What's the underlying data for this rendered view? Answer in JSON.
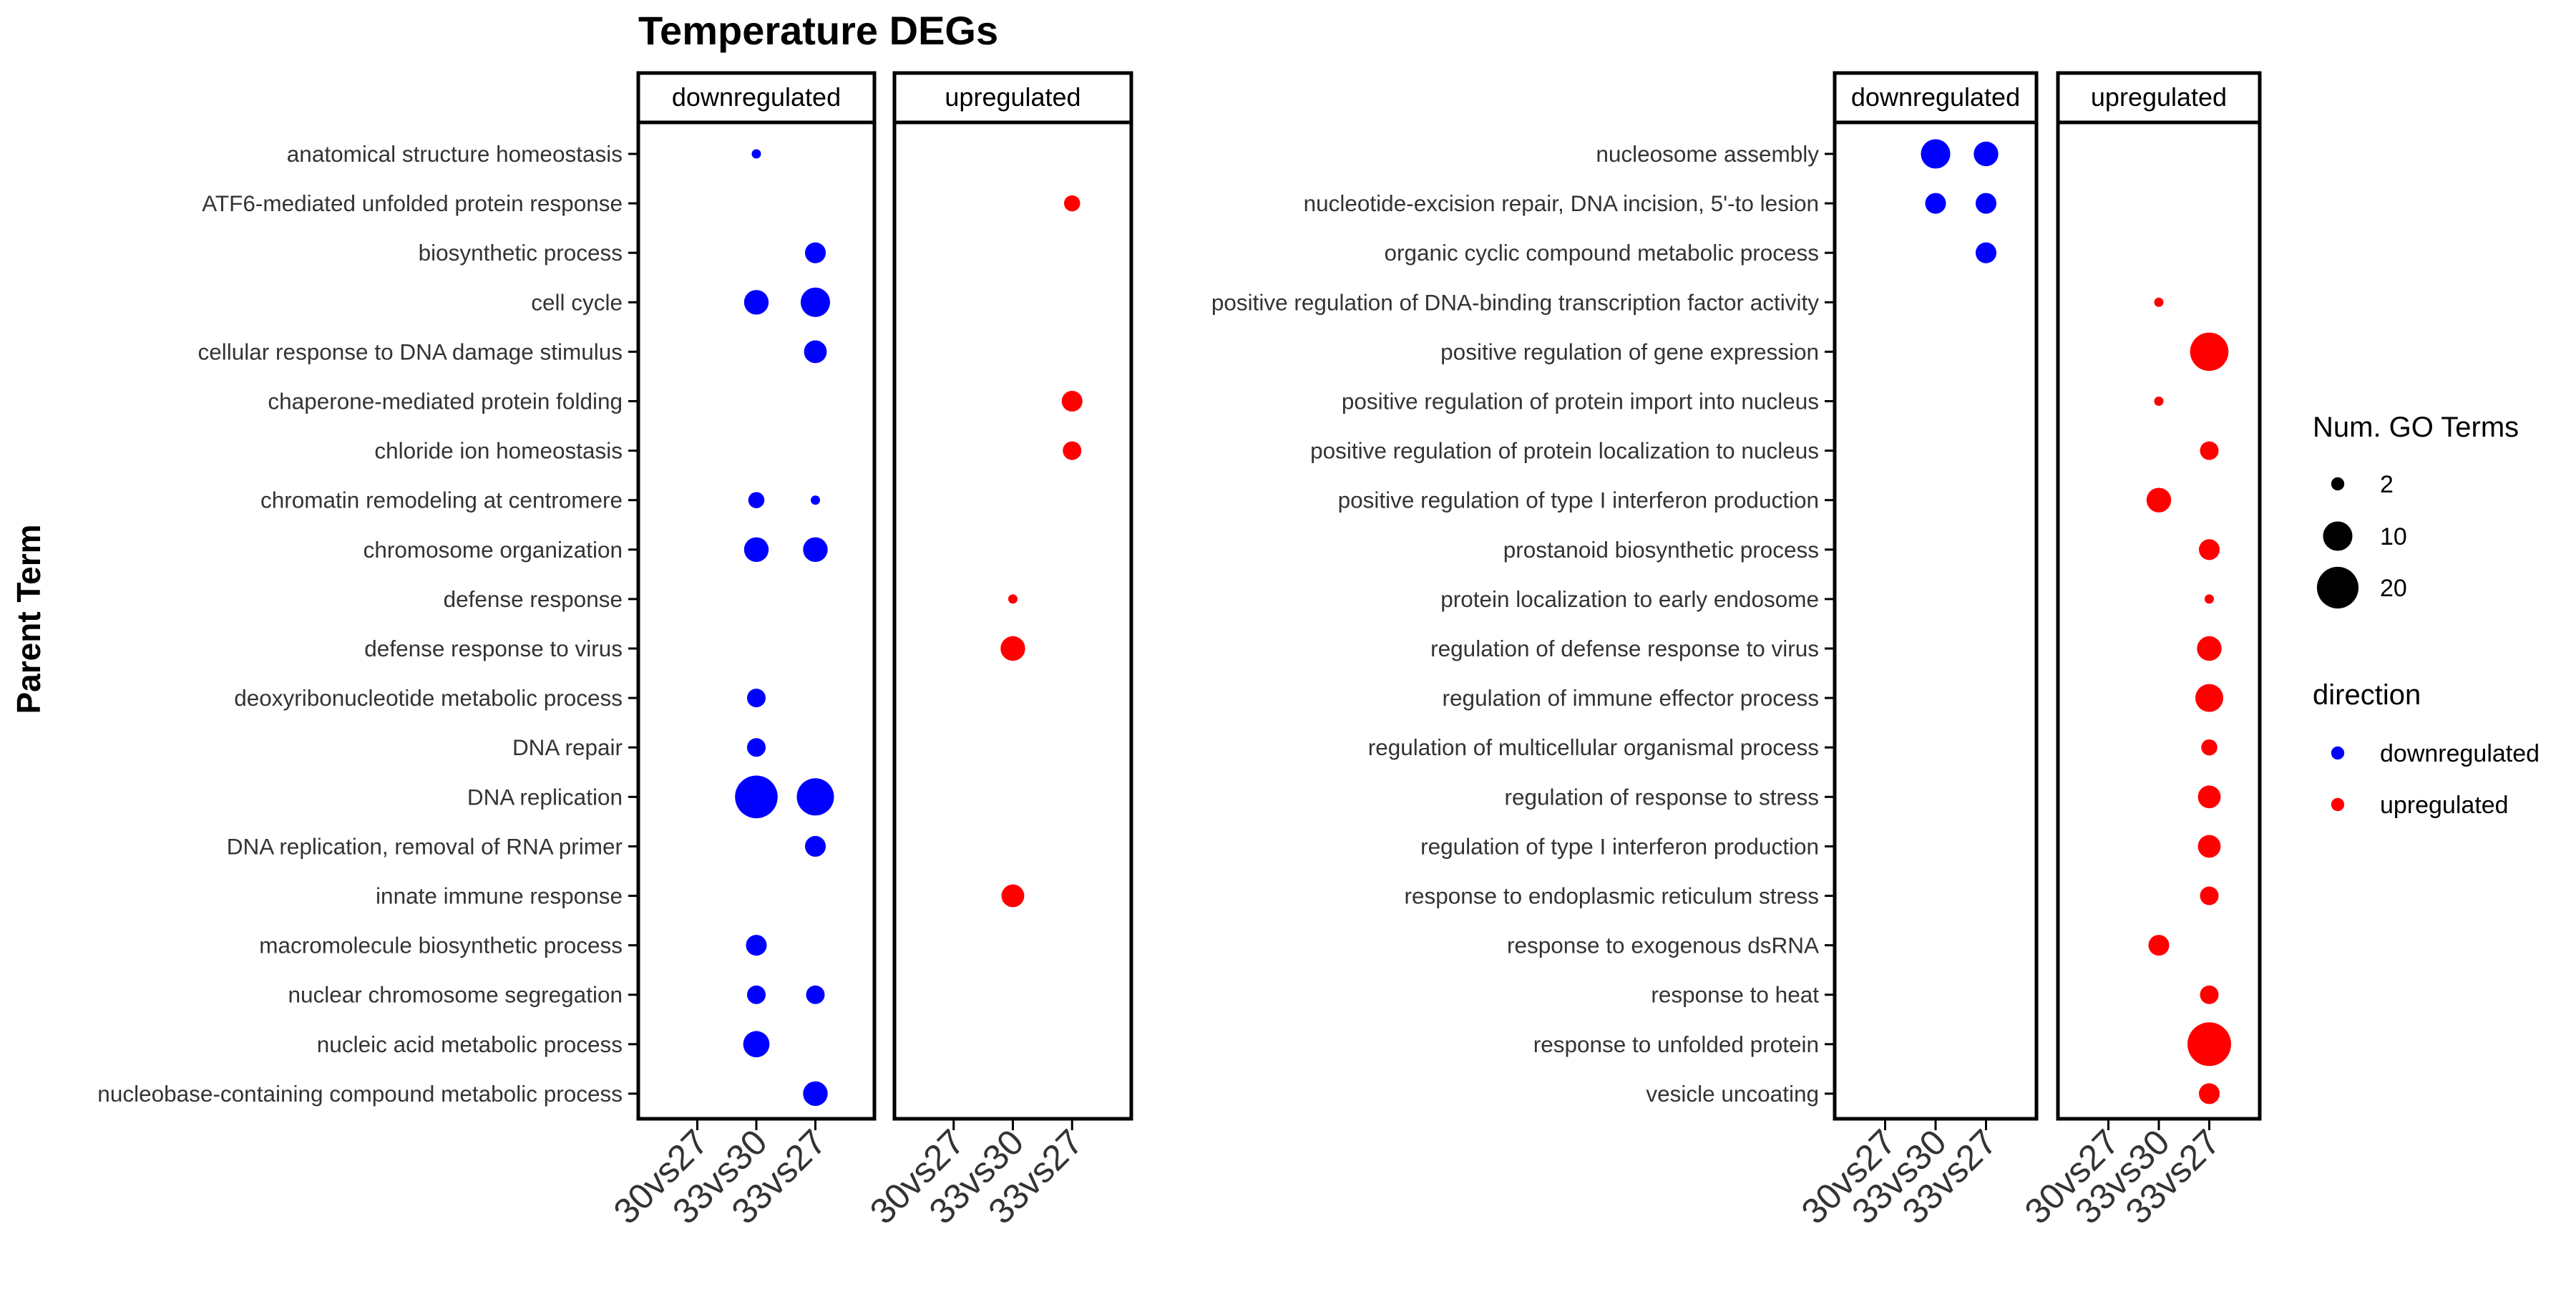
{
  "title": "Temperature DEGs",
  "colors": {
    "downregulated": "#0000ff",
    "upregulated": "#ff0000"
  },
  "chart_data": {
    "type": "scatter",
    "title": "Temperature DEGs",
    "ylabel": "Parent Term",
    "xlabel": "",
    "grid": false,
    "legend_position": "right",
    "size_legend": {
      "title": "Num. GO Terms",
      "values": [
        2,
        10,
        20
      ]
    },
    "color_legend": {
      "title": "direction",
      "entries": [
        "downregulated",
        "upregulated"
      ]
    },
    "panels": [
      {
        "name": "downregulated",
        "side": "left"
      },
      {
        "name": "upregulated",
        "side": "left"
      },
      {
        "name": "downregulated",
        "side": "right"
      },
      {
        "name": "upregulated",
        "side": "right"
      }
    ],
    "x_categories": [
      "30vs27",
      "33vs30",
      "33vs27"
    ],
    "left_terms": [
      "anatomical structure homeostasis",
      "ATF6-mediated unfolded protein response",
      "biosynthetic process",
      "cell cycle",
      "cellular response to DNA damage stimulus",
      "chaperone-mediated protein folding",
      "chloride ion homeostasis",
      "chromatin remodeling at centromere",
      "chromosome organization",
      "defense response",
      "defense response to virus",
      "deoxyribonucleotide metabolic process",
      "DNA repair",
      "DNA replication",
      "DNA replication, removal of RNA primer",
      "innate immune response",
      "macromolecule biosynthetic process",
      "nuclear chromosome segregation",
      "nucleic acid metabolic process",
      "nucleobase-containing compound metabolic process"
    ],
    "right_terms": [
      "nucleosome assembly",
      "nucleotide-excision repair, DNA incision, 5'-to lesion",
      "organic cyclic compound metabolic process",
      "positive regulation of DNA-binding transcription factor activity",
      "positive regulation of gene expression",
      "positive regulation of protein import into nucleus",
      "positive regulation of protein localization to nucleus",
      "positive regulation of type I interferon production",
      "prostanoid biosynthetic process",
      "protein localization to early endosome",
      "regulation of defense response to virus",
      "regulation of immune effector process",
      "regulation of multicellular organismal process",
      "regulation of response to stress",
      "regulation of type I interferon production",
      "response to endoplasmic reticulum stress",
      "response to exogenous dsRNA",
      "response to heat",
      "response to unfolded protein",
      "vesicle uncoating"
    ],
    "points": [
      {
        "side": "left",
        "panel": "downregulated",
        "term": "anatomical structure homeostasis",
        "x": "33vs30",
        "n": 1
      },
      {
        "side": "left",
        "panel": "upregulated",
        "term": "ATF6-mediated unfolded protein response",
        "x": "33vs27",
        "n": 3
      },
      {
        "side": "left",
        "panel": "downregulated",
        "term": "biosynthetic process",
        "x": "33vs27",
        "n": 5
      },
      {
        "side": "left",
        "panel": "downregulated",
        "term": "cell cycle",
        "x": "33vs30",
        "n": 7
      },
      {
        "side": "left",
        "panel": "downregulated",
        "term": "cell cycle",
        "x": "33vs27",
        "n": 10
      },
      {
        "side": "left",
        "panel": "downregulated",
        "term": "cellular response to DNA damage stimulus",
        "x": "33vs27",
        "n": 6
      },
      {
        "side": "left",
        "panel": "upregulated",
        "term": "chaperone-mediated protein folding",
        "x": "33vs27",
        "n": 5
      },
      {
        "side": "left",
        "panel": "upregulated",
        "term": "chloride ion homeostasis",
        "x": "33vs27",
        "n": 4
      },
      {
        "side": "left",
        "panel": "downregulated",
        "term": "chromatin remodeling at centromere",
        "x": "33vs30",
        "n": 3
      },
      {
        "side": "left",
        "panel": "downregulated",
        "term": "chromatin remodeling at centromere",
        "x": "33vs27",
        "n": 1
      },
      {
        "side": "left",
        "panel": "downregulated",
        "term": "chromosome organization",
        "x": "33vs30",
        "n": 7
      },
      {
        "side": "left",
        "panel": "downregulated",
        "term": "chromosome organization",
        "x": "33vs27",
        "n": 7
      },
      {
        "side": "left",
        "panel": "upregulated",
        "term": "defense response",
        "x": "33vs30",
        "n": 1
      },
      {
        "side": "left",
        "panel": "upregulated",
        "term": "defense response to virus",
        "x": "33vs30",
        "n": 7
      },
      {
        "side": "left",
        "panel": "downregulated",
        "term": "deoxyribonucleotide metabolic process",
        "x": "33vs30",
        "n": 4
      },
      {
        "side": "left",
        "panel": "downregulated",
        "term": "DNA repair",
        "x": "33vs30",
        "n": 4
      },
      {
        "side": "left",
        "panel": "downregulated",
        "term": "DNA replication",
        "x": "33vs30",
        "n": 21
      },
      {
        "side": "left",
        "panel": "downregulated",
        "term": "DNA replication",
        "x": "33vs27",
        "n": 16
      },
      {
        "side": "left",
        "panel": "downregulated",
        "term": "DNA replication, removal of RNA primer",
        "x": "33vs27",
        "n": 5
      },
      {
        "side": "left",
        "panel": "upregulated",
        "term": "innate immune response",
        "x": "33vs30",
        "n": 6
      },
      {
        "side": "left",
        "panel": "downregulated",
        "term": "macromolecule biosynthetic process",
        "x": "33vs30",
        "n": 5
      },
      {
        "side": "left",
        "panel": "downregulated",
        "term": "nuclear chromosome segregation",
        "x": "33vs30",
        "n": 4
      },
      {
        "side": "left",
        "panel": "downregulated",
        "term": "nuclear chromosome segregation",
        "x": "33vs27",
        "n": 4
      },
      {
        "side": "left",
        "panel": "downregulated",
        "term": "nucleic acid metabolic process",
        "x": "33vs30",
        "n": 8
      },
      {
        "side": "left",
        "panel": "downregulated",
        "term": "nucleobase-containing compound metabolic process",
        "x": "33vs27",
        "n": 7
      },
      {
        "side": "right",
        "panel": "downregulated",
        "term": "nucleosome assembly",
        "x": "33vs30",
        "n": 10
      },
      {
        "side": "right",
        "panel": "downregulated",
        "term": "nucleosome assembly",
        "x": "33vs27",
        "n": 7
      },
      {
        "side": "right",
        "panel": "downregulated",
        "term": "nucleotide-excision repair, DNA incision, 5'-to lesion",
        "x": "33vs30",
        "n": 5
      },
      {
        "side": "right",
        "panel": "downregulated",
        "term": "nucleotide-excision repair, DNA incision, 5'-to lesion",
        "x": "33vs27",
        "n": 5
      },
      {
        "side": "right",
        "panel": "downregulated",
        "term": "organic cyclic compound metabolic process",
        "x": "33vs27",
        "n": 5
      },
      {
        "side": "right",
        "panel": "upregulated",
        "term": "positive regulation of DNA-binding transcription factor activity",
        "x": "33vs30",
        "n": 1
      },
      {
        "side": "right",
        "panel": "upregulated",
        "term": "positive regulation of gene expression",
        "x": "33vs27",
        "n": 17
      },
      {
        "side": "right",
        "panel": "upregulated",
        "term": "positive regulation of protein import into nucleus",
        "x": "33vs30",
        "n": 1
      },
      {
        "side": "right",
        "panel": "upregulated",
        "term": "positive regulation of protein localization to nucleus",
        "x": "33vs27",
        "n": 4
      },
      {
        "side": "right",
        "panel": "upregulated",
        "term": "positive regulation of type I interferon production",
        "x": "33vs30",
        "n": 7
      },
      {
        "side": "right",
        "panel": "upregulated",
        "term": "prostanoid biosynthetic process",
        "x": "33vs27",
        "n": 5
      },
      {
        "side": "right",
        "panel": "upregulated",
        "term": "protein localization to early endosome",
        "x": "33vs27",
        "n": 1
      },
      {
        "side": "right",
        "panel": "upregulated",
        "term": "regulation of defense response to virus",
        "x": "33vs27",
        "n": 7
      },
      {
        "side": "right",
        "panel": "upregulated",
        "term": "regulation of immune effector process",
        "x": "33vs27",
        "n": 9
      },
      {
        "side": "right",
        "panel": "upregulated",
        "term": "regulation of multicellular organismal process",
        "x": "33vs27",
        "n": 3
      },
      {
        "side": "right",
        "panel": "upregulated",
        "term": "regulation of response to stress",
        "x": "33vs27",
        "n": 6
      },
      {
        "side": "right",
        "panel": "upregulated",
        "term": "regulation of type I interferon production",
        "x": "33vs27",
        "n": 6
      },
      {
        "side": "right",
        "panel": "upregulated",
        "term": "response to endoplasmic reticulum stress",
        "x": "33vs27",
        "n": 4
      },
      {
        "side": "right",
        "panel": "upregulated",
        "term": "response to exogenous dsRNA",
        "x": "33vs30",
        "n": 5
      },
      {
        "side": "right",
        "panel": "upregulated",
        "term": "response to heat",
        "x": "33vs27",
        "n": 4
      },
      {
        "side": "right",
        "panel": "upregulated",
        "term": "response to unfolded protein",
        "x": "33vs27",
        "n": 22
      },
      {
        "side": "right",
        "panel": "upregulated",
        "term": "vesicle uncoating",
        "x": "33vs27",
        "n": 5
      }
    ]
  }
}
